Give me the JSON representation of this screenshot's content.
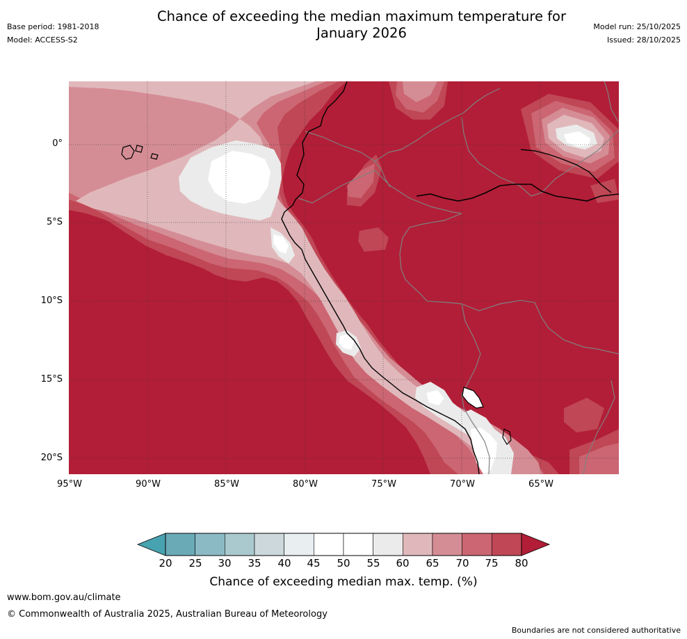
{
  "header": {
    "title_line1": "Chance of exceeding the median maximum temperature for",
    "title_line2": "January 2026",
    "base_period": "Base period: 1981-2018",
    "model": "Model: ACCESS-S2",
    "model_run": "Model run: 25/10/2025",
    "issued": "Issued: 28/10/2025"
  },
  "map": {
    "latitude_labels": [
      "0°",
      "5°S",
      "10°S",
      "15°S",
      "20°S"
    ],
    "longitude_labels": [
      "95°W",
      "90°W",
      "85°W",
      "80°W",
      "75°W",
      "70°W",
      "65°W"
    ],
    "colors": {
      "c80": "#b21e37",
      "c75": "#c04755",
      "c70": "#cb6672",
      "c65": "#d58d95",
      "c60": "#e0b8bb",
      "c55": "#ebebeb",
      "c50": "#ffffff",
      "coast": "#000000",
      "border": "#808080"
    }
  },
  "colorbar": {
    "ticks": [
      "20",
      "25",
      "30",
      "35",
      "40",
      "45",
      "50",
      "55",
      "60",
      "65",
      "70",
      "75",
      "80"
    ],
    "bins": [
      {
        "from": 20,
        "to": 25,
        "color": "#6aaab7"
      },
      {
        "from": 25,
        "to": 30,
        "color": "#8bbac5"
      },
      {
        "from": 30,
        "to": 35,
        "color": "#aac9cf"
      },
      {
        "from": 35,
        "to": 40,
        "color": "#cdd8dc"
      },
      {
        "from": 40,
        "to": 45,
        "color": "#e9eef1"
      },
      {
        "from": 45,
        "to": 50,
        "color": "#ffffff"
      },
      {
        "from": 50,
        "to": 55,
        "color": "#ffffff"
      },
      {
        "from": 55,
        "to": 60,
        "color": "#ebebeb"
      },
      {
        "from": 60,
        "to": 65,
        "color": "#e0b8bb"
      },
      {
        "from": 65,
        "to": 70,
        "color": "#d58d95"
      },
      {
        "from": 70,
        "to": 75,
        "color": "#cb6672"
      },
      {
        "from": 75,
        "to": 80,
        "color": "#c04755"
      }
    ],
    "low_color": "#48a3b0",
    "high_color": "#b21e37",
    "title": "Chance of exceeding median max. temp. (%)"
  },
  "footer": {
    "url": "www.bom.gov.au/climate",
    "copyright": "© Commonwealth of Australia 2025, Australian Bureau of Meteorology",
    "disclaimer": "Boundaries are not considered authoritative"
  }
}
